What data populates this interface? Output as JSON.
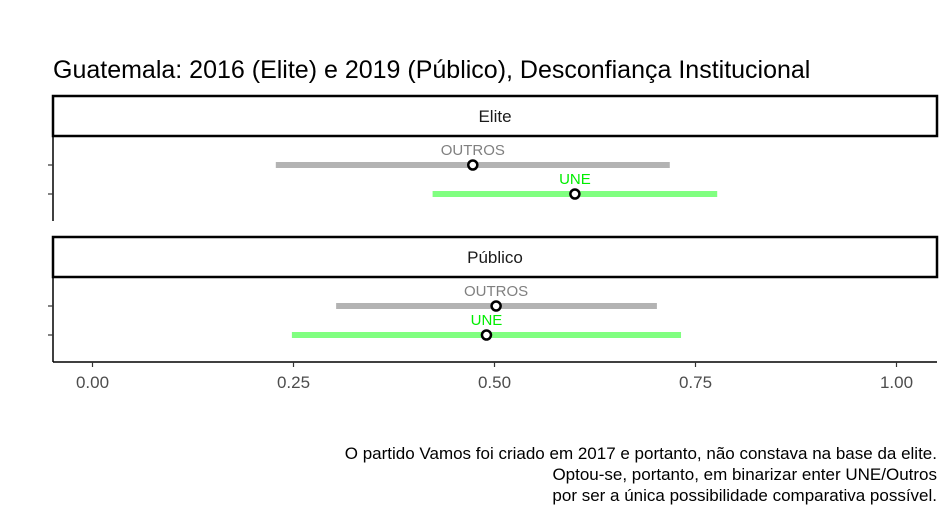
{
  "chart_data": {
    "type": "errorbar",
    "title": "Guatemala: 2016 (Elite) e 2019 (Público), Desconfiança Institucional",
    "xlabel": "",
    "ylabel": "",
    "xlim": [
      -0.05,
      1.05
    ],
    "x_ticks": [
      0,
      0.25,
      0.5,
      0.75,
      1.0
    ],
    "x_tick_labels": [
      "0.00",
      "0.25",
      "0.50",
      "0.75",
      "1.00"
    ],
    "grid": false,
    "legend": "none",
    "panels": [
      {
        "strip": "Elite",
        "series": [
          {
            "label": "OUTROS",
            "estimate": 0.473,
            "lower": 0.228,
            "upper": 0.718,
            "color": "#b3b3b3",
            "label_color": "#808080"
          },
          {
            "label": "UNE",
            "estimate": 0.6,
            "lower": 0.423,
            "upper": 0.777,
            "color": "#80ff80",
            "label_color": "#00ee00"
          }
        ]
      },
      {
        "strip": "Público",
        "series": [
          {
            "label": "OUTROS",
            "estimate": 0.502,
            "lower": 0.303,
            "upper": 0.702,
            "color": "#b3b3b3",
            "label_color": "#808080"
          },
          {
            "label": "UNE",
            "estimate": 0.49,
            "lower": 0.248,
            "upper": 0.732,
            "color": "#80ff80",
            "label_color": "#00ee00"
          }
        ]
      }
    ],
    "caption": [
      "O partido Vamos foi criado em 2017 e portanto, não constava na base da elite.",
      "Optou-se, portanto, em binarizar enter UNE/Outros",
      "por ser a única possibilidade comparativa possível."
    ]
  }
}
